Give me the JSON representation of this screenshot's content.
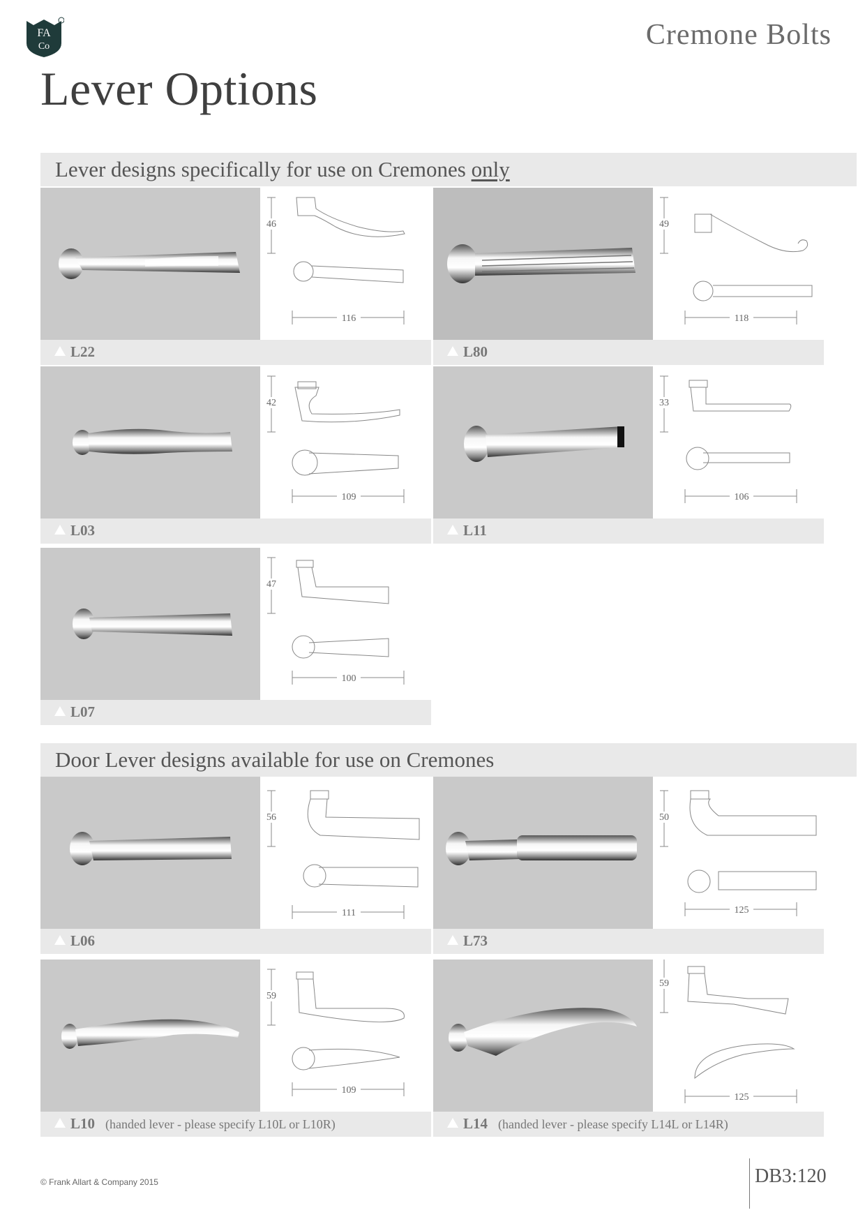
{
  "header": {
    "title": "Cremone Bolts",
    "logo_text": "FA CO"
  },
  "page_title": "Lever Options",
  "sections": [
    {
      "title": "Lever designs specifically for use on Cremones",
      "title_emphasis": "only",
      "items": [
        {
          "code": "L22",
          "height": "46",
          "length": "116",
          "note": ""
        },
        {
          "code": "L80",
          "height": "49",
          "length": "118",
          "note": ""
        },
        {
          "code": "L03",
          "height": "42",
          "length": "109",
          "note": ""
        },
        {
          "code": "L11",
          "height": "33",
          "length": "106",
          "note": ""
        },
        {
          "code": "L07",
          "height": "47",
          "length": "100",
          "note": ""
        }
      ]
    },
    {
      "title": "Door Lever designs available for use on Cremones",
      "title_emphasis": "",
      "items": [
        {
          "code": "L06",
          "height": "56",
          "length": "111",
          "note": ""
        },
        {
          "code": "L73",
          "height": "50",
          "length": "125",
          "note": ""
        },
        {
          "code": "L10",
          "height": "59",
          "length": "109",
          "note": "(handed lever - please specify L10L or L10R)"
        },
        {
          "code": "L14",
          "height": "59",
          "length": "125",
          "note": "(handed lever - please specify L14L or L14R)"
        }
      ]
    }
  ],
  "footer": {
    "copyright": "© Frank Allart & Company 2015",
    "page_code": "DB3:120"
  },
  "colors": {
    "caption_bar": "#e9e9e9",
    "photo_bg": "#c8c8c8",
    "logo": "#1f3b3a"
  }
}
